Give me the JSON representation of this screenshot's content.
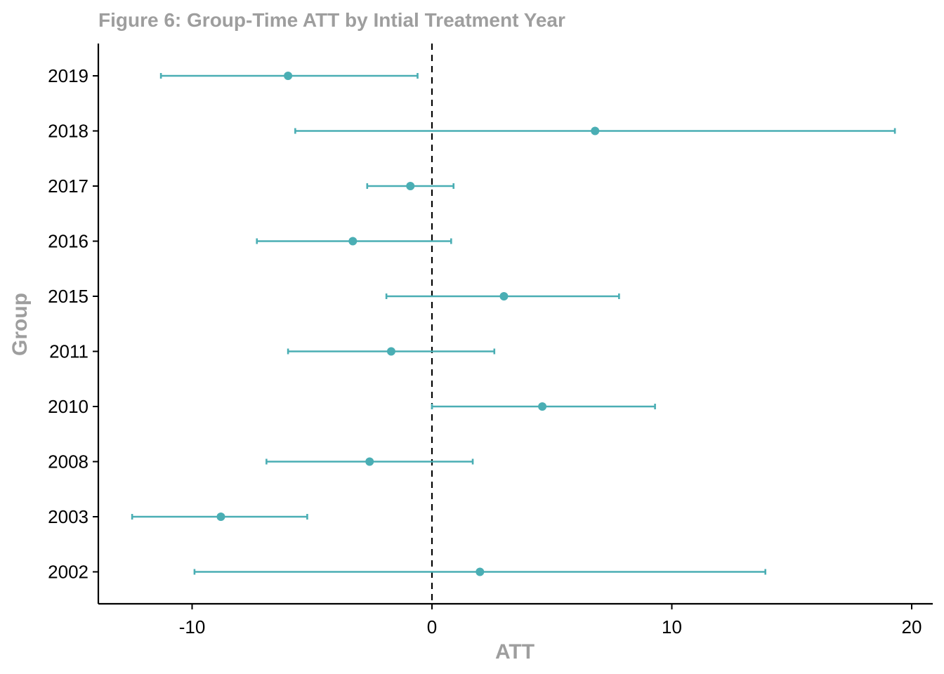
{
  "chart_data": {
    "type": "scatter",
    "title": "Figure 6: Group-Time ATT by Intial Treatment Year",
    "xlabel": "ATT",
    "ylabel": "Group",
    "xlim": [
      -14,
      20.9
    ],
    "x_ticks": [
      -10,
      0,
      10,
      20
    ],
    "reference_line_x": 0,
    "grid": false,
    "color": "#4aaeb4",
    "groups": [
      {
        "group": "2019",
        "att": -6.0,
        "ci_low": -11.3,
        "ci_high": -0.6
      },
      {
        "group": "2018",
        "att": 6.8,
        "ci_low": -5.7,
        "ci_high": 19.3
      },
      {
        "group": "2017",
        "att": -0.9,
        "ci_low": -2.7,
        "ci_high": 0.9
      },
      {
        "group": "2016",
        "att": -3.3,
        "ci_low": -7.3,
        "ci_high": 0.8
      },
      {
        "group": "2015",
        "att": 3.0,
        "ci_low": -1.9,
        "ci_high": 7.8
      },
      {
        "group": "2011",
        "att": -1.7,
        "ci_low": -6.0,
        "ci_high": 2.6
      },
      {
        "group": "2010",
        "att": 4.6,
        "ci_low": 0.0,
        "ci_high": 9.3
      },
      {
        "group": "2008",
        "att": -2.6,
        "ci_low": -6.9,
        "ci_high": 1.7
      },
      {
        "group": "2003",
        "att": -8.8,
        "ci_low": -12.5,
        "ci_high": -5.2
      },
      {
        "group": "2002",
        "att": 2.0,
        "ci_low": -9.9,
        "ci_high": 13.9
      }
    ]
  }
}
